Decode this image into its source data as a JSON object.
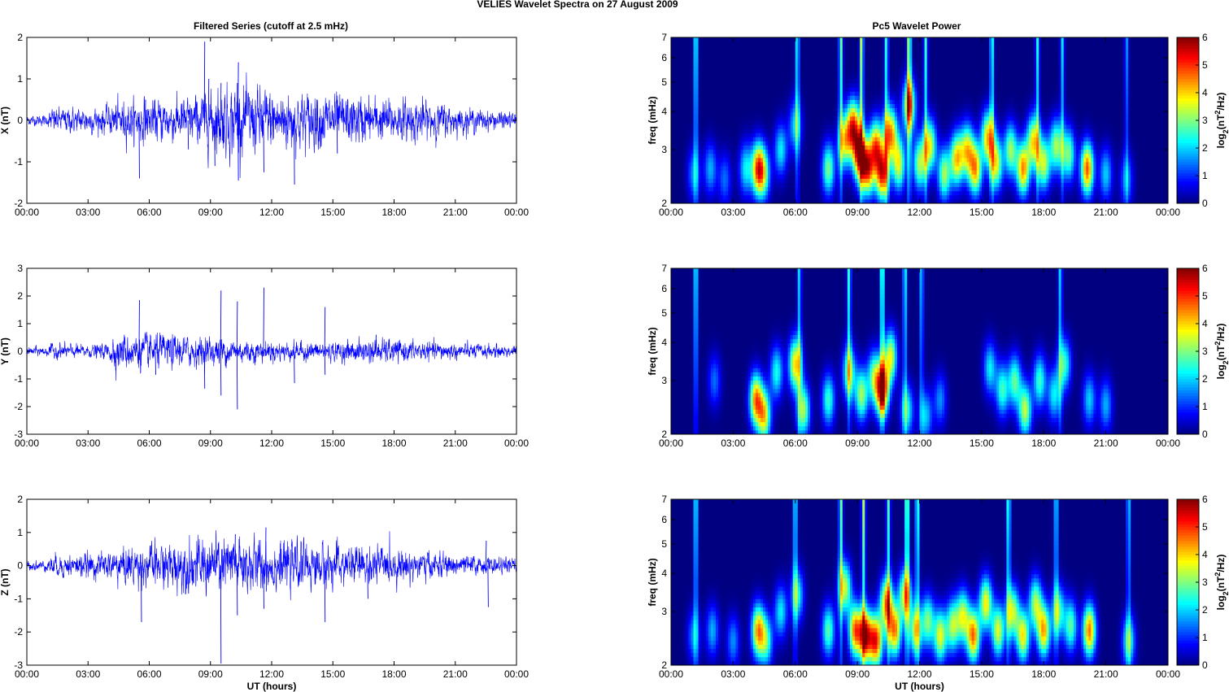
{
  "figure": {
    "suptitle": "VELIES Wavelet Spectra on 27 August    2009",
    "left_title": "Filtered Series (cutoff at 2.5 mHz)",
    "right_title": "Pc5 Wavelet Power"
  },
  "chart_data": [
    {
      "type": "line",
      "panel": "X",
      "ylabel": "X (nT)",
      "xlabel": "",
      "xticks": [
        "00:00",
        "03:00",
        "06:00",
        "09:00",
        "12:00",
        "15:00",
        "18:00",
        "21:00",
        "00:00"
      ],
      "xlim_hours": [
        0,
        24
      ],
      "ylim": [
        -2,
        2
      ],
      "yticks": [
        2,
        1,
        0,
        -1,
        -2
      ],
      "color": "#0000ff",
      "baseline_noise_nT": 0.08,
      "envelope": [
        [
          0,
          0.07
        ],
        [
          1,
          0.07
        ],
        [
          1.2,
          0.16
        ],
        [
          3,
          0.17
        ],
        [
          4,
          0.18
        ],
        [
          4.2,
          0.25
        ],
        [
          6,
          0.28
        ],
        [
          8,
          0.3
        ],
        [
          9,
          0.4
        ],
        [
          10,
          0.48
        ],
        [
          12,
          0.42
        ],
        [
          14,
          0.38
        ],
        [
          17,
          0.3
        ],
        [
          20,
          0.25
        ],
        [
          21,
          0.18
        ],
        [
          23,
          0.12
        ],
        [
          24,
          0.1
        ]
      ],
      "spikes": [
        [
          5.5,
          -1.4
        ],
        [
          5.8,
          0.5
        ],
        [
          7.9,
          -0.7
        ],
        [
          8.7,
          1.9
        ],
        [
          8.9,
          1.0
        ],
        [
          9.2,
          -1.1
        ],
        [
          9.5,
          0.9
        ],
        [
          10.35,
          1.4
        ],
        [
          10.35,
          -1.45
        ],
        [
          10.3,
          0.9
        ],
        [
          11.6,
          -1.25
        ],
        [
          13.1,
          -1.55
        ],
        [
          14.2,
          0.5
        ],
        [
          15.2,
          -0.8
        ]
      ]
    },
    {
      "type": "line",
      "panel": "Y",
      "ylabel": "Y (nT)",
      "xlabel": "",
      "xticks": [
        "00:00",
        "03:00",
        "06:00",
        "09:00",
        "12:00",
        "15:00",
        "18:00",
        "21:00",
        "00:00"
      ],
      "xlim_hours": [
        0,
        24
      ],
      "ylim": [
        -3,
        3
      ],
      "yticks": [
        3,
        2,
        1,
        0,
        -1,
        -2,
        -3
      ],
      "color": "#0000ff",
      "baseline_noise_nT": 0.08,
      "envelope": [
        [
          0,
          0.09
        ],
        [
          1,
          0.1
        ],
        [
          1.2,
          0.16
        ],
        [
          3,
          0.12
        ],
        [
          4,
          0.16
        ],
        [
          4.2,
          0.35
        ],
        [
          6,
          0.35
        ],
        [
          8,
          0.3
        ],
        [
          9.5,
          0.28
        ],
        [
          12,
          0.2
        ],
        [
          15,
          0.18
        ],
        [
          17,
          0.25
        ],
        [
          20,
          0.18
        ],
        [
          24,
          0.12
        ]
      ],
      "spikes": [
        [
          5.5,
          1.85
        ],
        [
          6.3,
          -0.85
        ],
        [
          8.7,
          -1.35
        ],
        [
          9.5,
          2.2
        ],
        [
          9.5,
          -1.6
        ],
        [
          10.3,
          1.8
        ],
        [
          10.3,
          -2.1
        ],
        [
          11.6,
          2.3
        ],
        [
          13.1,
          -1.15
        ],
        [
          14.6,
          1.6
        ],
        [
          14.6,
          -0.85
        ],
        [
          17.1,
          0.6
        ]
      ]
    },
    {
      "type": "line",
      "panel": "Z",
      "ylabel": "Z (nT)",
      "xlabel": "UT (hours)",
      "xticks": [
        "00:00",
        "03:00",
        "06:00",
        "09:00",
        "12:00",
        "15:00",
        "18:00",
        "21:00",
        "00:00"
      ],
      "xlim_hours": [
        0,
        24
      ],
      "ylim": [
        -3,
        2
      ],
      "yticks": [
        2,
        1,
        0,
        -1,
        -2,
        -3
      ],
      "color": "#0000ff",
      "baseline_noise_nT": 0.08,
      "envelope": [
        [
          0,
          0.08
        ],
        [
          1,
          0.09
        ],
        [
          1.2,
          0.18
        ],
        [
          3,
          0.2
        ],
        [
          4,
          0.22
        ],
        [
          4.2,
          0.3
        ],
        [
          6,
          0.35
        ],
        [
          8,
          0.45
        ],
        [
          10,
          0.5
        ],
        [
          12,
          0.42
        ],
        [
          15,
          0.35
        ],
        [
          17,
          0.32
        ],
        [
          20,
          0.22
        ],
        [
          22,
          0.15
        ],
        [
          24,
          0.12
        ]
      ],
      "spikes": [
        [
          5.6,
          -1.7
        ],
        [
          8.6,
          0.5
        ],
        [
          9.5,
          -2.95
        ],
        [
          10.2,
          0.95
        ],
        [
          10.3,
          -1.5
        ],
        [
          11.7,
          1.15
        ],
        [
          11.6,
          -1.3
        ],
        [
          14.6,
          -1.7
        ],
        [
          16.7,
          -1.0
        ],
        [
          22.5,
          0.75
        ],
        [
          22.6,
          -1.25
        ]
      ]
    },
    {
      "type": "heatmap",
      "panel": "X",
      "ylabel": "freq (mHz)",
      "xlabel": "",
      "yscale": "log",
      "ylim": [
        2,
        7
      ],
      "yticks": [
        2,
        3,
        4,
        5,
        6,
        7
      ],
      "xticks": [
        "00:00",
        "03:00",
        "06:00",
        "09:00",
        "12:00",
        "15:00",
        "18:00",
        "21:00",
        "00:00"
      ],
      "xlim_hours": [
        0,
        24
      ],
      "colorbar": {
        "label_base": "log",
        "label_sub": "2",
        "label_mid": "(nT",
        "label_sup": "2",
        "label_end": "/Hz)",
        "ticks": [
          0,
          1,
          2,
          3,
          4,
          5,
          6
        ],
        "range": [
          0,
          6
        ],
        "colormap": "jet"
      },
      "blobs": [
        [
          1.1,
          2.5,
          1.6
        ],
        [
          1.9,
          2.6,
          1.8
        ],
        [
          2.6,
          2.4,
          1.4
        ],
        [
          3.6,
          2.6,
          2.2
        ],
        [
          4.2,
          2.6,
          4.6
        ],
        [
          4.5,
          2.5,
          2.4
        ],
        [
          5.3,
          3.0,
          2.2
        ],
        [
          6.0,
          3.6,
          2.0
        ],
        [
          7.6,
          2.6,
          3.0
        ],
        [
          8.4,
          3.2,
          3.6
        ],
        [
          8.8,
          3.6,
          4.6
        ],
        [
          9.1,
          2.9,
          5.4
        ],
        [
          9.5,
          2.6,
          4.8
        ],
        [
          9.9,
          3.1,
          4.2
        ],
        [
          10.2,
          2.5,
          5.0
        ],
        [
          10.6,
          3.4,
          4.4
        ],
        [
          11.0,
          2.7,
          3.6
        ],
        [
          11.5,
          4.2,
          4.0
        ],
        [
          12.0,
          2.7,
          3.2
        ],
        [
          12.5,
          3.1,
          3.6
        ],
        [
          13.2,
          2.5,
          3.2
        ],
        [
          13.8,
          2.8,
          4.0
        ],
        [
          14.3,
          3.0,
          3.6
        ],
        [
          14.7,
          2.6,
          4.2
        ],
        [
          15.3,
          3.3,
          4.0
        ],
        [
          15.7,
          2.7,
          3.6
        ],
        [
          16.4,
          3.0,
          3.2
        ],
        [
          17.0,
          2.6,
          4.4
        ],
        [
          17.5,
          3.2,
          3.8
        ],
        [
          18.0,
          2.7,
          3.4
        ],
        [
          18.6,
          3.1,
          3.2
        ],
        [
          19.2,
          2.9,
          3.0
        ],
        [
          20.1,
          2.6,
          4.8
        ],
        [
          21.0,
          2.5,
          2.0
        ],
        [
          22.0,
          2.4,
          1.6
        ]
      ],
      "streaks": [
        [
          1.2,
          4.6
        ],
        [
          6.1,
          4.2
        ],
        [
          8.2,
          5.0
        ],
        [
          9.2,
          5.8
        ],
        [
          10.4,
          4.4
        ],
        [
          11.5,
          6.0
        ],
        [
          12.3,
          4.4
        ],
        [
          15.5,
          4.4
        ],
        [
          17.7,
          4.0
        ],
        [
          18.9,
          3.6
        ],
        [
          22.0,
          2.8
        ]
      ]
    },
    {
      "type": "heatmap",
      "panel": "Y",
      "ylabel": "freq (mHz)",
      "xlabel": "",
      "yscale": "log",
      "ylim": [
        2,
        7
      ],
      "yticks": [
        2,
        3,
        4,
        5,
        6,
        7
      ],
      "xticks": [
        "00:00",
        "03:00",
        "06:00",
        "09:00",
        "12:00",
        "15:00",
        "18:00",
        "21:00",
        "00:00"
      ],
      "xlim_hours": [
        0,
        24
      ],
      "colorbar": {
        "label_base": "log",
        "label_sub": "2",
        "label_mid": "(nT",
        "label_sup": "2",
        "label_end": "/Hz)",
        "ticks": [
          0,
          1,
          2,
          3,
          4,
          5,
          6
        ],
        "range": [
          0,
          6
        ],
        "colormap": "jet"
      },
      "blobs": [
        [
          2.1,
          3.0,
          1.4
        ],
        [
          4.1,
          2.6,
          4.4
        ],
        [
          4.5,
          2.3,
          3.8
        ],
        [
          5.1,
          3.2,
          2.4
        ],
        [
          6.0,
          3.4,
          4.0
        ],
        [
          6.4,
          2.4,
          3.2
        ],
        [
          7.6,
          2.6,
          2.6
        ],
        [
          8.6,
          3.2,
          3.0
        ],
        [
          9.2,
          2.7,
          3.2
        ],
        [
          9.8,
          3.1,
          2.8
        ],
        [
          10.2,
          2.8,
          5.8
        ],
        [
          10.6,
          3.6,
          3.6
        ],
        [
          11.4,
          2.4,
          2.4
        ],
        [
          12.3,
          2.3,
          2.0
        ],
        [
          13.0,
          2.6,
          1.6
        ],
        [
          15.4,
          3.3,
          2.2
        ],
        [
          16.0,
          2.8,
          2.6
        ],
        [
          16.6,
          3.0,
          2.8
        ],
        [
          17.1,
          2.4,
          3.4
        ],
        [
          17.8,
          3.0,
          2.6
        ],
        [
          18.5,
          2.7,
          2.2
        ],
        [
          19.0,
          3.4,
          2.6
        ],
        [
          20.2,
          2.6,
          2.0
        ],
        [
          21.0,
          2.5,
          1.8
        ]
      ],
      "streaks": [
        [
          1.2,
          4.4
        ],
        [
          6.2,
          3.6
        ],
        [
          8.6,
          4.4
        ],
        [
          10.2,
          5.4
        ],
        [
          11.3,
          4.2
        ],
        [
          12.1,
          3.6
        ],
        [
          18.8,
          3.6
        ]
      ]
    },
    {
      "type": "heatmap",
      "panel": "Z",
      "ylabel": "freq (mHz)",
      "xlabel": "UT (hours)",
      "yscale": "log",
      "ylim": [
        2,
        7
      ],
      "yticks": [
        2,
        3,
        4,
        5,
        6,
        7
      ],
      "xticks": [
        "00:00",
        "03:00",
        "06:00",
        "09:00",
        "12:00",
        "15:00",
        "18:00",
        "21:00",
        "00:00"
      ],
      "xlim_hours": [
        0,
        24
      ],
      "colorbar": {
        "label_base": "log",
        "label_sub": "2",
        "label_mid": "(nT",
        "label_sup": "2",
        "label_end": "/Hz)",
        "ticks": [
          0,
          1,
          2,
          3,
          4,
          5,
          6
        ],
        "range": [
          0,
          6
        ],
        "colormap": "jet"
      },
      "blobs": [
        [
          1.1,
          2.5,
          1.6
        ],
        [
          2.0,
          2.6,
          1.8
        ],
        [
          3.0,
          2.4,
          1.6
        ],
        [
          4.2,
          2.6,
          4.2
        ],
        [
          4.6,
          2.4,
          2.6
        ],
        [
          5.3,
          3.0,
          2.2
        ],
        [
          6.1,
          3.4,
          2.4
        ],
        [
          7.6,
          2.6,
          2.8
        ],
        [
          8.4,
          3.6,
          3.4
        ],
        [
          8.9,
          2.6,
          4.6
        ],
        [
          9.4,
          2.5,
          5.4
        ],
        [
          9.9,
          2.4,
          5.0
        ],
        [
          10.4,
          3.2,
          4.2
        ],
        [
          10.8,
          2.6,
          4.4
        ],
        [
          11.3,
          3.4,
          3.6
        ],
        [
          11.8,
          2.6,
          3.4
        ],
        [
          12.4,
          2.8,
          3.0
        ],
        [
          13.0,
          2.5,
          3.6
        ],
        [
          13.6,
          2.7,
          3.2
        ],
        [
          14.1,
          2.9,
          3.4
        ],
        [
          14.6,
          2.5,
          4.6
        ],
        [
          15.2,
          3.2,
          3.8
        ],
        [
          15.8,
          2.6,
          3.6
        ],
        [
          16.5,
          3.0,
          3.4
        ],
        [
          17.0,
          2.5,
          3.8
        ],
        [
          17.6,
          3.2,
          3.2
        ],
        [
          18.0,
          2.6,
          4.2
        ],
        [
          18.7,
          3.0,
          2.8
        ],
        [
          19.3,
          2.7,
          2.8
        ],
        [
          20.2,
          2.6,
          4.6
        ],
        [
          22.1,
          2.4,
          2.6
        ]
      ],
      "streaks": [
        [
          1.2,
          4.4
        ],
        [
          6.0,
          4.2
        ],
        [
          8.2,
          5.0
        ],
        [
          9.3,
          5.6
        ],
        [
          10.5,
          4.6
        ],
        [
          11.4,
          6.0
        ],
        [
          11.9,
          4.8
        ],
        [
          16.3,
          4.6
        ],
        [
          18.6,
          4.0
        ],
        [
          22.1,
          3.6
        ]
      ]
    }
  ]
}
